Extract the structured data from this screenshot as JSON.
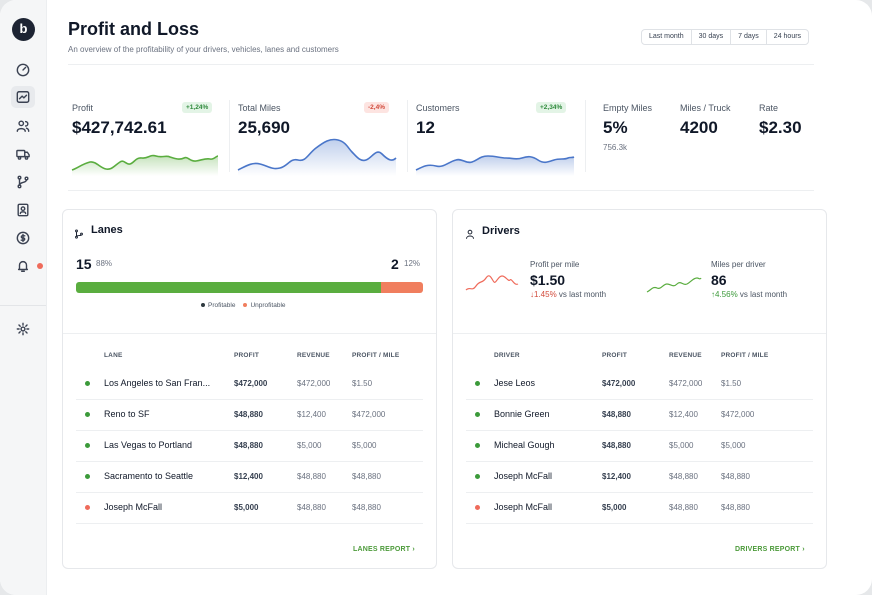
{
  "app": {
    "logo_letter": "b"
  },
  "header": {
    "title": "Profit and Loss",
    "subtitle": "An overview of the profitability of your drivers, vehicles, lanes and customers",
    "ranges": [
      "Last month",
      "30 days",
      "7 days",
      "24 hours"
    ]
  },
  "kpis": {
    "profit": {
      "label": "Profit",
      "value": "$427,742.61",
      "badge": "+1,24%"
    },
    "miles": {
      "label": "Total Miles",
      "value": "25,690",
      "badge": "-2,4%"
    },
    "customers": {
      "label": "Customers",
      "value": "12",
      "badge": "+2,34%"
    },
    "empty_miles": {
      "label": "Empty Miles",
      "value": "5%",
      "sub": "756.3k"
    },
    "miles_per_truck": {
      "label": "Miles / Truck",
      "value": "4200"
    },
    "rate": {
      "label": "Rate",
      "value": "$2.30"
    }
  },
  "colors": {
    "green": "#5aad3f",
    "blue": "#4a76c9",
    "red": "#ef6b5b"
  },
  "lanes": {
    "title": "Lanes",
    "profitable_count": "15",
    "profitable_pct": "88%",
    "unprofitable_count": "2",
    "unprofitable_pct": "12%",
    "profitable_fraction": 0.88,
    "legend_profitable": "Profitable",
    "legend_unprofitable": "Unprofitable",
    "headers": [
      "LANE",
      "PROFIT",
      "REVENUE",
      "PROFIT / MILE"
    ],
    "rows": [
      {
        "name": "Los Angeles to San Fran...",
        "profit": "$472,000",
        "revenue": "$472,000",
        "ppm": "$1.50",
        "status": "profitable"
      },
      {
        "name": "Reno to SF",
        "profit": "$48,880",
        "revenue": "$12,400",
        "ppm": "$472,000",
        "status": "profitable"
      },
      {
        "name": "Las Vegas to Portland",
        "profit": "$48,880",
        "revenue": "$5,000",
        "ppm": "$5,000",
        "status": "profitable"
      },
      {
        "name": "Sacramento to Seattle",
        "profit": "$12,400",
        "revenue": "$48,880",
        "ppm": "$48,880",
        "status": "profitable"
      },
      {
        "name": "Joseph McFall",
        "profit": "$5,000",
        "revenue": "$48,880",
        "ppm": "$48,880",
        "status": "unprofitable"
      }
    ],
    "report_link": "LANES REPORT"
  },
  "drivers": {
    "title": "Drivers",
    "profit_per_mile": {
      "label": "Profit per mile",
      "value": "$1.50",
      "delta": "1.45%",
      "delta_suffix": "vs last month"
    },
    "miles_per_driver": {
      "label": "Miles per driver",
      "value": "86",
      "delta": "4.56%",
      "delta_suffix": "vs last month"
    },
    "headers": [
      "DRIVER",
      "PROFIT",
      "REVENUE",
      "PROFIT / MILE"
    ],
    "rows": [
      {
        "name": "Jese Leos",
        "profit": "$472,000",
        "revenue": "$472,000",
        "ppm": "$1.50",
        "status": "profitable"
      },
      {
        "name": "Bonnie Green",
        "profit": "$48,880",
        "revenue": "$12,400",
        "ppm": "$472,000",
        "status": "profitable"
      },
      {
        "name": "Micheal Gough",
        "profit": "$48,880",
        "revenue": "$5,000",
        "ppm": "$5,000",
        "status": "profitable"
      },
      {
        "name": "Joseph McFall",
        "profit": "$12,400",
        "revenue": "$48,880",
        "ppm": "$48,880",
        "status": "profitable"
      },
      {
        "name": "Joseph McFall",
        "profit": "$5,000",
        "revenue": "$48,880",
        "ppm": "$48,880",
        "status": "unprofitable"
      }
    ],
    "report_link": "DRIVERS REPORT"
  },
  "icons": [
    "dashboard-icon",
    "reports-icon",
    "users-icon",
    "truck-icon",
    "lanes-icon",
    "contacts-icon",
    "billing-icon",
    "bell-icon",
    "settings-icon"
  ]
}
